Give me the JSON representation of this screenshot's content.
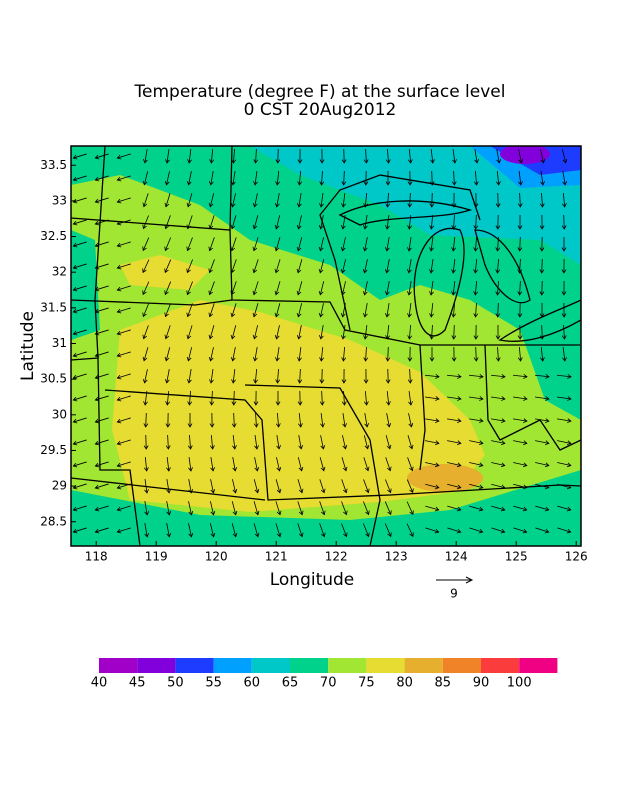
{
  "chart_data": {
    "type": "map",
    "title": "Temperature (degree F) at the surface level",
    "subtitle": "0 CST 20Aug2012",
    "xlabel": "Longitude",
    "ylabel": "Latitude",
    "xlim": [
      117.58,
      126.08
    ],
    "ylim": [
      28.16,
      33.77
    ],
    "xticks": [
      118,
      119,
      120,
      121,
      122,
      123,
      124,
      125,
      126
    ],
    "yticks": [
      28.5,
      29,
      29.5,
      30,
      30.5,
      31,
      31.5,
      32,
      32.5,
      33,
      33.5
    ],
    "vector_reference": 9,
    "colorbar": {
      "levels": [
        40,
        45,
        50,
        55,
        60,
        65,
        70,
        75,
        80,
        85,
        90,
        100
      ],
      "colors": [
        "#a000c8",
        "#8200dc",
        "#1e3cff",
        "#00a0ff",
        "#00c8c8",
        "#00d28c",
        "#a0e632",
        "#e6dc32",
        "#e6af2d",
        "#f08228",
        "#fa3c3c",
        "#f00082"
      ]
    }
  }
}
